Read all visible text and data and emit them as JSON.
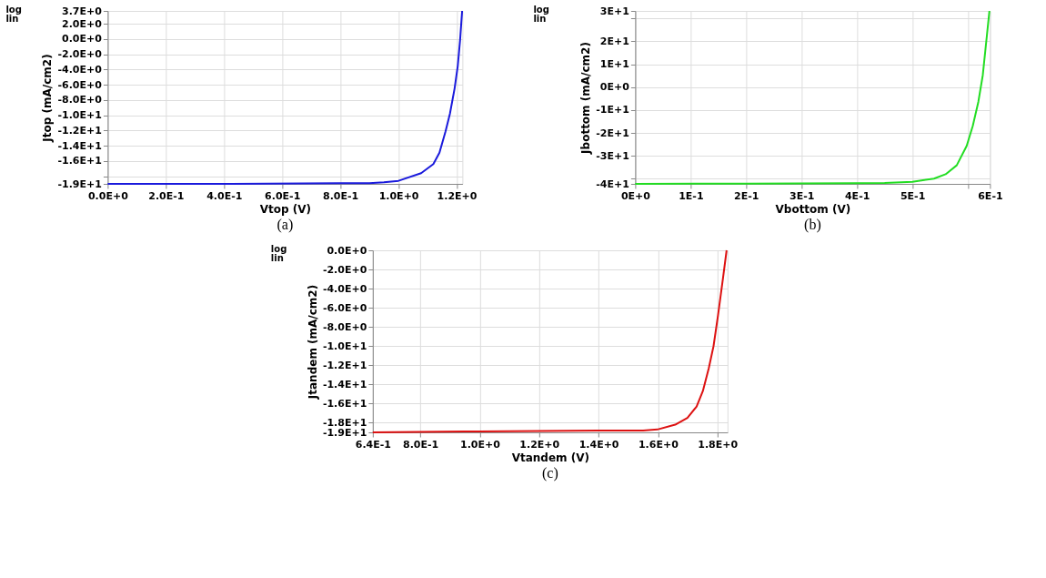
{
  "chart_data": [
    {
      "type": "line",
      "title": "(a)",
      "xlabel": "Vtop (V)",
      "ylabel": "Jtop (mA/cm2)",
      "annotations": [
        "log",
        "lin"
      ],
      "grid": true,
      "marker": "none",
      "line_style": "solid",
      "xlim": [
        0,
        1.22
      ],
      "ylim": [
        -19,
        3.7
      ],
      "xticks": [
        {
          "value": 0,
          "label": "0.0E+0"
        },
        {
          "value": 0.2,
          "label": "2.0E-1"
        },
        {
          "value": 0.4,
          "label": "4.0E-1"
        },
        {
          "value": 0.6,
          "label": "6.0E-1"
        },
        {
          "value": 0.8,
          "label": "8.0E-1"
        },
        {
          "value": 1.0,
          "label": "1.0E+0"
        },
        {
          "value": 1.2,
          "label": "1.2E+0"
        }
      ],
      "yticks": [
        {
          "value": 3.7,
          "label": "3.7E+0"
        },
        {
          "value": 2,
          "label": "2.0E+0"
        },
        {
          "value": 0,
          "label": "0.0E+0"
        },
        {
          "value": -2,
          "label": "-2.0E+0"
        },
        {
          "value": -4,
          "label": "-4.0E+0"
        },
        {
          "value": -6,
          "label": "-6.0E+0"
        },
        {
          "value": -8,
          "label": "-8.0E+0"
        },
        {
          "value": -10,
          "label": "-1.0E+1"
        },
        {
          "value": -12,
          "label": "-1.2E+1"
        },
        {
          "value": -14,
          "label": "-1.4E+1"
        },
        {
          "value": -16,
          "label": "-1.6E+1"
        },
        {
          "value": -18,
          "label": null
        },
        {
          "value": -19,
          "label": "-1.9E+1"
        }
      ],
      "series": [
        {
          "color": "#1a1adc",
          "x": [
            0,
            0.4,
            0.8,
            0.9,
            0.95,
            1.0,
            1.078,
            1.12,
            1.141,
            1.162,
            1.177,
            1.193,
            1.204,
            1.212,
            1.219
          ],
          "values": [
            -19.0,
            -19.0,
            -18.9,
            -18.9,
            -18.8,
            -18.6,
            -17.6,
            -16.4,
            -14.9,
            -12.1,
            -9.8,
            -6.5,
            -3.5,
            -0.1,
            3.7
          ]
        }
      ]
    },
    {
      "type": "line",
      "title": "(b)",
      "xlabel": "Vbottom (V)",
      "ylabel": "Jbottom (mA/cm2)",
      "annotations": [
        "log",
        "lin"
      ],
      "grid": true,
      "marker": "none",
      "line_style": "solid",
      "xlim": [
        0,
        0.64
      ],
      "ylim": [
        -42.2,
        33.3
      ],
      "xticks": [
        {
          "value": 0,
          "label": "0E+0"
        },
        {
          "value": 0.1,
          "label": "1E-1"
        },
        {
          "value": 0.2,
          "label": "2E-1"
        },
        {
          "value": 0.3,
          "label": "3E-1"
        },
        {
          "value": 0.4,
          "label": "4E-1"
        },
        {
          "value": 0.5,
          "label": "5E-1"
        },
        {
          "value": 0.6,
          "label": null
        },
        {
          "value": 0.64,
          "label": "6E-1"
        }
      ],
      "yticks": [
        {
          "value": 33.3,
          "label": "3E+1"
        },
        {
          "value": 30,
          "label": null
        },
        {
          "value": 20,
          "label": "2E+1"
        },
        {
          "value": 10,
          "label": "1E+1"
        },
        {
          "value": 0,
          "label": "0E+0"
        },
        {
          "value": -10,
          "label": "-1E+1"
        },
        {
          "value": -20,
          "label": "-2E+1"
        },
        {
          "value": -30,
          "label": "-3E+1"
        },
        {
          "value": -40,
          "label": null
        },
        {
          "value": -42.2,
          "label": "-4E+1"
        }
      ],
      "series": [
        {
          "color": "#22dd22",
          "x": [
            0,
            0.2,
            0.4,
            0.45,
            0.5,
            0.539,
            0.56,
            0.58,
            0.598,
            0.609,
            0.619,
            0.627,
            0.633,
            0.639
          ],
          "values": [
            -42.2,
            -42.1,
            -41.9,
            -41.8,
            -41.3,
            -39.9,
            -38.0,
            -34.1,
            -25.6,
            -16.9,
            -6.4,
            5.2,
            19.2,
            33.3
          ]
        }
      ]
    },
    {
      "type": "line",
      "title": "(c)",
      "xlabel": "Vtandem (V)",
      "ylabel": "Jtandem (mA/cm2)",
      "annotations": [
        "log",
        "lin"
      ],
      "grid": true,
      "marker": "none",
      "line_style": "solid",
      "xlim": [
        0.64,
        1.834
      ],
      "ylim": [
        -19,
        0
      ],
      "xticks": [
        {
          "value": 0.64,
          "label": "6.4E-1"
        },
        {
          "value": 0.8,
          "label": "8.0E-1"
        },
        {
          "value": 1.0,
          "label": "1.0E+0"
        },
        {
          "value": 1.2,
          "label": "1.2E+0"
        },
        {
          "value": 1.4,
          "label": "1.4E+0"
        },
        {
          "value": 1.6,
          "label": "1.6E+0"
        },
        {
          "value": 1.8,
          "label": "1.8E+0"
        }
      ],
      "yticks": [
        {
          "value": 0,
          "label": "0.0E+0"
        },
        {
          "value": -2,
          "label": "-2.0E+0"
        },
        {
          "value": -4,
          "label": "-4.0E+0"
        },
        {
          "value": -6,
          "label": "-6.0E+0"
        },
        {
          "value": -8,
          "label": "-8.0E+0"
        },
        {
          "value": -10,
          "label": "-1.0E+1"
        },
        {
          "value": -12,
          "label": "-1.2E+1"
        },
        {
          "value": -14,
          "label": "-1.4E+1"
        },
        {
          "value": -16,
          "label": "-1.6E+1"
        },
        {
          "value": -18,
          "label": "-1.8E+1"
        },
        {
          "value": -19,
          "label": "-1.9E+1"
        }
      ],
      "series": [
        {
          "color": "#dd1111",
          "x": [
            0.64,
            1.0,
            1.4,
            1.55,
            1.598,
            1.658,
            1.699,
            1.73,
            1.751,
            1.771,
            1.787,
            1.802,
            1.818,
            1.831
          ],
          "values": [
            -19.0,
            -18.9,
            -18.8,
            -18.8,
            -18.7,
            -18.2,
            -17.5,
            -16.3,
            -14.7,
            -12.3,
            -10.0,
            -6.8,
            -3.1,
            0
          ]
        }
      ]
    }
  ]
}
